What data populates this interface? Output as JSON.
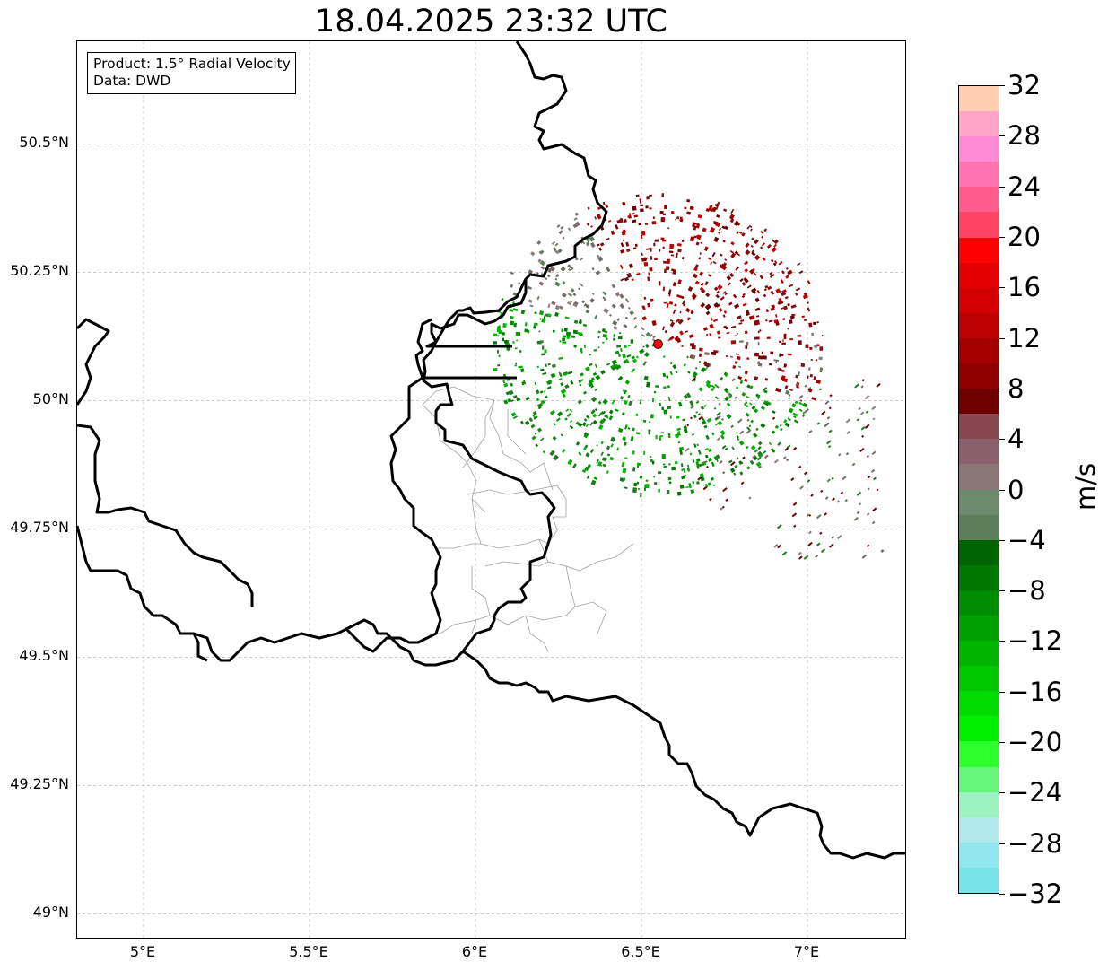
{
  "title": "18.04.2025 23:32 UTC",
  "info_box": {
    "product": "Product: 1.5° Radial Velocity",
    "data": "Data: DWD"
  },
  "axes": {
    "lat_labels": [
      "50.5°N",
      "50.25°N",
      "50°N",
      "49.75°N",
      "49.5°N",
      "49.25°N",
      "49°N"
    ],
    "lon_labels": [
      "5°E",
      "5.5°E",
      "6°E",
      "6.5°E",
      "7°E"
    ],
    "lat_values": [
      50.5,
      50.25,
      50.0,
      49.75,
      49.5,
      49.25,
      49.0
    ],
    "lon_values": [
      5.0,
      5.5,
      6.0,
      6.5,
      7.0
    ],
    "lon_range": [
      4.8,
      7.3
    ],
    "lat_range": [
      48.95,
      50.7
    ],
    "grid": true
  },
  "radar_site": {
    "lon": 6.55,
    "lat": 50.11,
    "color": "#ff0000"
  },
  "colorbar": {
    "unit": "m/s",
    "min": -32,
    "max": 32,
    "tick_labels": [
      "32",
      "28",
      "24",
      "20",
      "16",
      "12",
      "8",
      "4",
      "0",
      "−4",
      "−8",
      "−12",
      "−16",
      "−20",
      "−24",
      "−28",
      "−32"
    ],
    "colors_top_to_bottom": [
      "#ffcdb0",
      "#ffa6c8",
      "#ff8ad6",
      "#ff73b0",
      "#ff5b8c",
      "#ff4466",
      "#ff0000",
      "#e00000",
      "#d20000",
      "#bd0000",
      "#a50000",
      "#8f0000",
      "#6e0000",
      "#884650",
      "#8a606c",
      "#8a7878",
      "#6c8a6c",
      "#5c7e58",
      "#006400",
      "#007800",
      "#008c00",
      "#00a000",
      "#00b400",
      "#00c800",
      "#00dc00",
      "#00f000",
      "#2dff2d",
      "#66f57a",
      "#9cf2c0",
      "#b0e8ee",
      "#90e8ee",
      "#78e3e8"
    ]
  }
}
